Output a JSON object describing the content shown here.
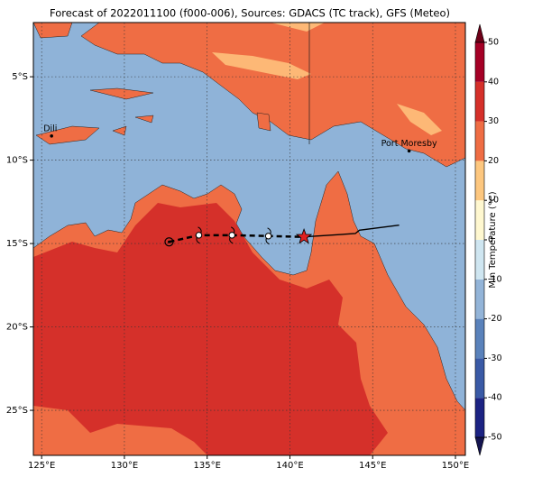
{
  "map": {
    "title": "Forecast of 2022011100 (f000-006), Sources: GDACS (TC track), GFS (Meteo)",
    "xlim": [
      124.5,
      150.6
    ],
    "ylim": [
      -27.7,
      -1.75
    ],
    "xticks": [
      {
        "value": 125,
        "label": "125°E"
      },
      {
        "value": 130,
        "label": "130°E"
      },
      {
        "value": 135,
        "label": "135°E"
      },
      {
        "value": 140,
        "label": "140°E"
      },
      {
        "value": 145,
        "label": "145°E"
      },
      {
        "value": 150,
        "label": "150°E"
      }
    ],
    "yticks": [
      {
        "value": -5,
        "label": "5°S"
      },
      {
        "value": -10,
        "label": "10°S"
      },
      {
        "value": -15,
        "label": "15°S"
      },
      {
        "value": -20,
        "label": "20°S"
      },
      {
        "value": -25,
        "label": "25°S"
      }
    ],
    "grid": true,
    "cities": [
      {
        "name": "Dili",
        "lon": 125.6,
        "lat": -8.55
      },
      {
        "name": "Port Moresby",
        "lon": 147.2,
        "lat": -9.45
      }
    ],
    "track_forecast": {
      "color": "#000000",
      "lon": [
        132.7,
        134.5,
        136.5,
        138.7,
        140.85
      ],
      "lat": [
        -14.9,
        -14.5,
        -14.5,
        -14.55,
        -14.6
      ]
    },
    "track_observed": {
      "color": "#000000",
      "lon": [
        140.85,
        143.95,
        144.2,
        146.6
      ],
      "lat": [
        -14.6,
        -14.4,
        -14.2,
        -13.9
      ]
    },
    "colorbar": {
      "label": "Min Temperature (°C)",
      "lim": [
        -50,
        50
      ],
      "ticks": [
        -50,
        -40,
        -30,
        -20,
        -10,
        0,
        10,
        20,
        30,
        40,
        50
      ],
      "colors": [
        "#1c2383",
        "#3a5aa6",
        "#5a82bb",
        "#93b4d8",
        "#cfe6f1",
        "#fff8d0",
        "#fdc77f",
        "#ef6d44",
        "#d5302a",
        "#a50026"
      ],
      "under": "#141450",
      "over": "#6e0018"
    }
  }
}
